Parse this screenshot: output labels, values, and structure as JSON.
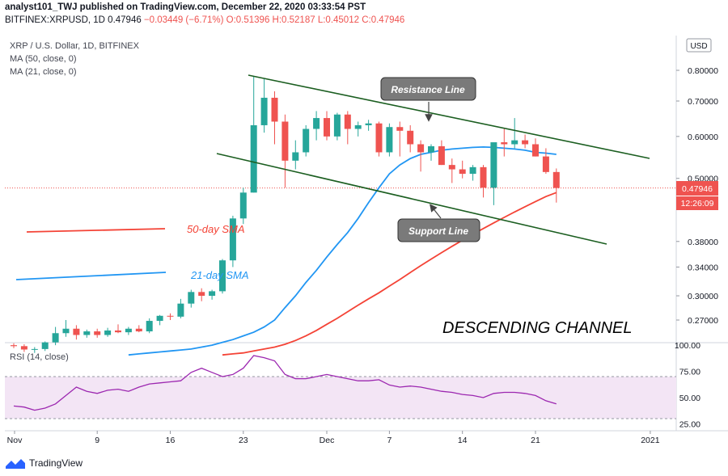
{
  "header": {
    "publisher_line": "analyst101_TWJ published on TradingView.com, December 22, 2020 03:33:54 PST",
    "symbol": "BITFINEX:XRPUSD, 1D",
    "last": "0.47946",
    "change": "−0.03449 (−6.71%)",
    "o": "O:0.51396",
    "h": "H:0.52187",
    "l": "L:0.45012",
    "c": "C:0.47946"
  },
  "legend": {
    "title": "XRP / U.S. Dollar, 1D, BITFINEX",
    "ma50": "MA (50, close, 0)",
    "ma21": "MA (21, close, 0)",
    "rsi": "RSI (14, close)"
  },
  "price_axis": {
    "currency": "USD",
    "current_price": "0.47946",
    "countdown": "12:26:09"
  },
  "annotations": {
    "resistance": "Resistance Line",
    "support": "Support Line",
    "sma50": "50-day SMA",
    "sma21": "21-day SMA",
    "pattern": "DESCENDING CHANNEL"
  },
  "brand": "TradingView",
  "colors": {
    "up": "#26a69a",
    "down": "#ef5350",
    "ma21": "#2196f3",
    "ma50": "#f44336",
    "channel": "#2e7d32",
    "rsi": "#9c27b0",
    "rsi_band": "#f3e5f5"
  },
  "chart_data": {
    "type": "candlestick",
    "title": "XRP / U.S. Dollar, 1D, BITFINEX",
    "y_scale": "log",
    "y_ticks": [
      0.27,
      0.3,
      0.34,
      0.38,
      0.5,
      0.6,
      0.7,
      0.8
    ],
    "x_ticks": [
      "Nov",
      "9",
      "16",
      "23",
      "Dec",
      "7",
      "14",
      "21",
      "2021"
    ],
    "candles": [
      {
        "date": "2020-11-01",
        "o": 0.242,
        "h": 0.244,
        "l": 0.239,
        "c": 0.241
      },
      {
        "date": "2020-11-02",
        "o": 0.241,
        "h": 0.243,
        "l": 0.235,
        "c": 0.2375
      },
      {
        "date": "2020-11-03",
        "o": 0.2375,
        "h": 0.24,
        "l": 0.234,
        "c": 0.238
      },
      {
        "date": "2020-11-04",
        "o": 0.238,
        "h": 0.246,
        "l": 0.236,
        "c": 0.245
      },
      {
        "date": "2020-11-05",
        "o": 0.245,
        "h": 0.262,
        "l": 0.242,
        "c": 0.255
      },
      {
        "date": "2020-11-06",
        "o": 0.255,
        "h": 0.27,
        "l": 0.251,
        "c": 0.26
      },
      {
        "date": "2020-11-07",
        "o": 0.26,
        "h": 0.264,
        "l": 0.248,
        "c": 0.253
      },
      {
        "date": "2020-11-08",
        "o": 0.253,
        "h": 0.259,
        "l": 0.25,
        "c": 0.257
      },
      {
        "date": "2020-11-09",
        "o": 0.257,
        "h": 0.26,
        "l": 0.25,
        "c": 0.253
      },
      {
        "date": "2020-11-10",
        "o": 0.253,
        "h": 0.261,
        "l": 0.251,
        "c": 0.258
      },
      {
        "date": "2020-11-11",
        "o": 0.258,
        "h": 0.265,
        "l": 0.255,
        "c": 0.256
      },
      {
        "date": "2020-11-12",
        "o": 0.256,
        "h": 0.262,
        "l": 0.253,
        "c": 0.26
      },
      {
        "date": "2020-11-13",
        "o": 0.26,
        "h": 0.264,
        "l": 0.256,
        "c": 0.257
      },
      {
        "date": "2020-11-14",
        "o": 0.257,
        "h": 0.272,
        "l": 0.255,
        "c": 0.269
      },
      {
        "date": "2020-11-15",
        "o": 0.269,
        "h": 0.276,
        "l": 0.264,
        "c": 0.275
      },
      {
        "date": "2020-11-16",
        "o": 0.275,
        "h": 0.278,
        "l": 0.27,
        "c": 0.274
      },
      {
        "date": "2020-11-17",
        "o": 0.274,
        "h": 0.296,
        "l": 0.272,
        "c": 0.29
      },
      {
        "date": "2020-11-18",
        "o": 0.29,
        "h": 0.308,
        "l": 0.285,
        "c": 0.305
      },
      {
        "date": "2020-11-19",
        "o": 0.305,
        "h": 0.31,
        "l": 0.293,
        "c": 0.3
      },
      {
        "date": "2020-11-20",
        "o": 0.3,
        "h": 0.308,
        "l": 0.295,
        "c": 0.306
      },
      {
        "date": "2020-11-21",
        "o": 0.306,
        "h": 0.352,
        "l": 0.303,
        "c": 0.35
      },
      {
        "date": "2020-11-22",
        "o": 0.35,
        "h": 0.425,
        "l": 0.34,
        "c": 0.42
      },
      {
        "date": "2020-11-23",
        "o": 0.42,
        "h": 0.48,
        "l": 0.41,
        "c": 0.47
      },
      {
        "date": "2020-11-24",
        "o": 0.47,
        "h": 0.78,
        "l": 0.47,
        "c": 0.63
      },
      {
        "date": "2020-11-25",
        "o": 0.63,
        "h": 0.77,
        "l": 0.61,
        "c": 0.71
      },
      {
        "date": "2020-11-26",
        "o": 0.71,
        "h": 0.73,
        "l": 0.58,
        "c": 0.64
      },
      {
        "date": "2020-11-27",
        "o": 0.64,
        "h": 0.66,
        "l": 0.48,
        "c": 0.54
      },
      {
        "date": "2020-11-28",
        "o": 0.54,
        "h": 0.59,
        "l": 0.52,
        "c": 0.56
      },
      {
        "date": "2020-11-29",
        "o": 0.56,
        "h": 0.63,
        "l": 0.55,
        "c": 0.62
      },
      {
        "date": "2020-11-30",
        "o": 0.62,
        "h": 0.67,
        "l": 0.59,
        "c": 0.65
      },
      {
        "date": "2020-12-01",
        "o": 0.65,
        "h": 0.67,
        "l": 0.59,
        "c": 0.6
      },
      {
        "date": "2020-12-02",
        "o": 0.6,
        "h": 0.665,
        "l": 0.59,
        "c": 0.66
      },
      {
        "date": "2020-12-03",
        "o": 0.66,
        "h": 0.67,
        "l": 0.58,
        "c": 0.62
      },
      {
        "date": "2020-12-04",
        "o": 0.62,
        "h": 0.64,
        "l": 0.6,
        "c": 0.63
      },
      {
        "date": "2020-12-05",
        "o": 0.63,
        "h": 0.645,
        "l": 0.615,
        "c": 0.635
      },
      {
        "date": "2020-12-06",
        "o": 0.635,
        "h": 0.64,
        "l": 0.55,
        "c": 0.56
      },
      {
        "date": "2020-12-07",
        "o": 0.56,
        "h": 0.635,
        "l": 0.55,
        "c": 0.625
      },
      {
        "date": "2020-12-08",
        "o": 0.625,
        "h": 0.64,
        "l": 0.55,
        "c": 0.615
      },
      {
        "date": "2020-12-09",
        "o": 0.615,
        "h": 0.63,
        "l": 0.56,
        "c": 0.58
      },
      {
        "date": "2020-12-10",
        "o": 0.58,
        "h": 0.59,
        "l": 0.515,
        "c": 0.56
      },
      {
        "date": "2020-12-11",
        "o": 0.56,
        "h": 0.58,
        "l": 0.54,
        "c": 0.575
      },
      {
        "date": "2020-12-12",
        "o": 0.575,
        "h": 0.59,
        "l": 0.53,
        "c": 0.53
      },
      {
        "date": "2020-12-13",
        "o": 0.53,
        "h": 0.545,
        "l": 0.49,
        "c": 0.52
      },
      {
        "date": "2020-12-14",
        "o": 0.52,
        "h": 0.54,
        "l": 0.5,
        "c": 0.51
      },
      {
        "date": "2020-12-15",
        "o": 0.51,
        "h": 0.53,
        "l": 0.495,
        "c": 0.525
      },
      {
        "date": "2020-12-16",
        "o": 0.525,
        "h": 0.53,
        "l": 0.46,
        "c": 0.48
      },
      {
        "date": "2020-12-17",
        "o": 0.48,
        "h": 0.58,
        "l": 0.445,
        "c": 0.585
      },
      {
        "date": "2020-12-18",
        "o": 0.585,
        "h": 0.62,
        "l": 0.55,
        "c": 0.58
      },
      {
        "date": "2020-12-19",
        "o": 0.58,
        "h": 0.65,
        "l": 0.57,
        "c": 0.59
      },
      {
        "date": "2020-12-20",
        "o": 0.59,
        "h": 0.605,
        "l": 0.57,
        "c": 0.58
      },
      {
        "date": "2020-12-21",
        "o": 0.58,
        "h": 0.595,
        "l": 0.55,
        "c": 0.55
      },
      {
        "date": "2020-12-22",
        "o": 0.55,
        "h": 0.57,
        "l": 0.51,
        "c": 0.514
      },
      {
        "date": "2020-12-23",
        "o": 0.514,
        "h": 0.522,
        "l": 0.45,
        "c": 0.4795
      }
    ],
    "series": [
      {
        "name": "MA (21, close, 0)",
        "values": [
          0.232,
          0.233,
          0.234,
          0.235,
          0.236,
          0.237,
          0.238,
          0.24,
          0.242,
          0.245,
          0.248,
          0.252,
          0.256,
          0.262,
          0.27,
          0.285,
          0.3,
          0.318,
          0.335,
          0.355,
          0.375,
          0.395,
          0.42,
          0.45,
          0.48,
          0.51,
          0.53,
          0.545,
          0.555,
          0.56,
          0.565,
          0.568,
          0.57,
          0.572,
          0.573,
          0.572,
          0.57,
          0.568,
          0.565,
          0.56,
          0.558,
          0.555
        ]
      },
      {
        "name": "MA (50, close, 0)",
        "values": [
          0.232,
          0.233,
          0.234,
          0.236,
          0.238,
          0.24,
          0.243,
          0.247,
          0.252,
          0.258,
          0.265,
          0.272,
          0.28,
          0.288,
          0.296,
          0.304,
          0.313,
          0.322,
          0.332,
          0.342,
          0.352,
          0.362,
          0.372,
          0.382,
          0.392,
          0.402,
          0.412,
          0.422,
          0.432,
          0.442,
          0.452,
          0.462,
          0.47
        ]
      }
    ],
    "rsi": {
      "name": "RSI (14, close)",
      "upper": 70,
      "lower": 30,
      "ticks": [
        25,
        50,
        75,
        100
      ],
      "values": [
        42,
        41,
        38,
        40,
        44,
        52,
        60,
        56,
        54,
        57,
        58,
        56,
        60,
        63,
        64,
        65,
        66,
        74,
        78,
        74,
        70,
        72,
        78,
        90,
        88,
        85,
        72,
        68,
        68,
        70,
        72,
        70,
        68,
        66,
        66,
        67,
        62,
        60,
        61,
        60,
        58,
        56,
        55,
        53,
        52,
        50,
        54,
        55,
        55,
        54,
        52,
        47,
        44
      ]
    }
  }
}
